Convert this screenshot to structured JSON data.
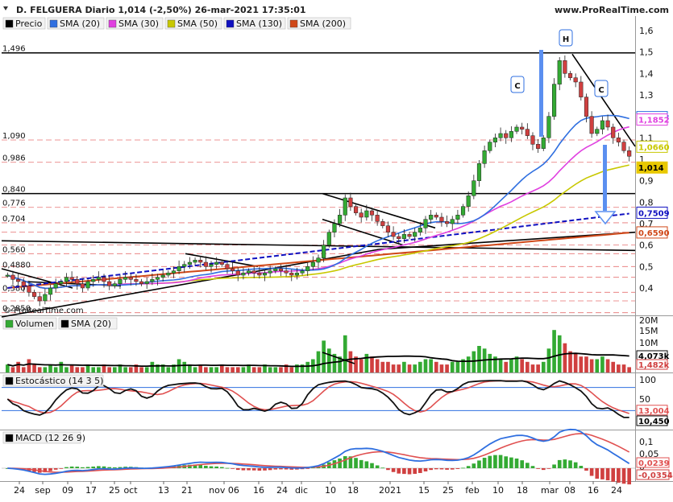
{
  "header": {
    "title": "D. FELGUERA Diario 1,014 (-2,50%) 26-mar-2021 17:35:01",
    "site": "www.ProRealTime.com",
    "watermark": "© ProRealTime.com"
  },
  "colors": {
    "price_up": "#33aa33",
    "price_down": "#d04040",
    "sma20": "#2f6fe0",
    "sma30": "#e040e0",
    "sma50": "#c8c800",
    "sma130": "#1010c0",
    "sma200": "#d04818",
    "volume_up": "#33aa33",
    "volume_down": "#d04040",
    "stoch_k": "#111111",
    "stoch_d": "#e05050",
    "macd": "#2f6fe0",
    "macd_signal": "#e05050",
    "arrow": "#5b8ff0"
  },
  "chart_data": [
    {
      "type": "candlestick",
      "name": "price-panel",
      "title": "Precio",
      "legend": [
        "Precio",
        "SMA (20)",
        "SMA (30)",
        "SMA (50)",
        "SMA (130)",
        "SMA (200)"
      ],
      "y_ticks": [
        "1,6",
        "1,5",
        "1,4",
        "1,3",
        "1,2",
        "1,1",
        "1",
        "0,9",
        "0,8",
        "0,7",
        "0,6",
        "0,5",
        "0,4"
      ],
      "ylim": [
        0.24,
        1.64
      ],
      "x_ticks": [
        "24",
        "sep",
        "09",
        "17",
        "25",
        "oct",
        "13",
        "21",
        "nov 06",
        "16",
        "24",
        "dic",
        "10",
        "18",
        "2021",
        "15",
        "25",
        "feb",
        "10",
        "18",
        "mar",
        "08",
        "16",
        "24"
      ],
      "levels": [
        {
          "label": "1,496",
          "value": 1.496
        },
        {
          "label": "1,090",
          "value": 1.09
        },
        {
          "label": "0,986",
          "value": 0.986
        },
        {
          "label": "0,840",
          "value": 0.84
        },
        {
          "label": "0,776",
          "value": 0.776
        },
        {
          "label": "0,704",
          "value": 0.704
        },
        {
          "label": "0,560",
          "value": 0.56
        },
        {
          "label": "0,4880",
          "value": 0.488
        },
        {
          "label": "0,380",
          "value": 0.38
        },
        {
          "label": "0,2850",
          "value": 0.285
        }
      ],
      "value_tags": [
        {
          "label": "1,1963",
          "value": 1.1963,
          "series": "SMA (20)"
        },
        {
          "label": "1,1852",
          "value": 1.1852,
          "series": "SMA (30)"
        },
        {
          "label": "1,0660",
          "value": 1.066,
          "series": "SMA (50)"
        },
        {
          "label": "1,014",
          "value": 1.014,
          "series": "Precio"
        },
        {
          "label": "0,7509",
          "value": 0.7509,
          "series": "SMA (130)"
        },
        {
          "label": "0,6590",
          "value": 0.659,
          "series": "SMA (200)"
        }
      ],
      "annotations": [
        "C",
        "H",
        "C"
      ],
      "close": [
        0.46,
        0.44,
        0.43,
        0.41,
        0.38,
        0.36,
        0.34,
        0.37,
        0.4,
        0.42,
        0.43,
        0.45,
        0.44,
        0.42,
        0.4,
        0.43,
        0.44,
        0.45,
        0.43,
        0.41,
        0.42,
        0.44,
        0.45,
        0.44,
        0.43,
        0.42,
        0.43,
        0.44,
        0.45,
        0.46,
        0.47,
        0.48,
        0.5,
        0.51,
        0.52,
        0.53,
        0.52,
        0.5,
        0.51,
        0.52,
        0.51,
        0.49,
        0.48,
        0.46,
        0.47,
        0.48,
        0.47,
        0.46,
        0.47,
        0.48,
        0.49,
        0.48,
        0.47,
        0.46,
        0.47,
        0.48,
        0.5,
        0.52,
        0.54,
        0.6,
        0.66,
        0.7,
        0.74,
        0.82,
        0.78,
        0.75,
        0.73,
        0.76,
        0.74,
        0.71,
        0.69,
        0.66,
        0.64,
        0.63,
        0.65,
        0.64,
        0.66,
        0.68,
        0.72,
        0.74,
        0.73,
        0.71,
        0.7,
        0.72,
        0.74,
        0.78,
        0.83,
        0.9,
        0.98,
        1.04,
        1.08,
        1.1,
        1.12,
        1.1,
        1.13,
        1.15,
        1.14,
        1.11,
        1.07,
        1.05,
        1.1,
        1.2,
        1.35,
        1.46,
        1.4,
        1.38,
        1.36,
        1.29,
        1.2,
        1.12,
        1.14,
        1.18,
        1.15,
        1.1,
        1.08,
        1.04,
        1.014
      ],
      "volume": [
        3,
        2,
        4,
        2,
        5,
        3,
        2,
        2,
        3,
        2,
        4,
        2,
        3,
        2,
        2,
        3,
        2,
        2,
        3,
        2,
        2,
        3,
        2,
        2,
        3,
        2,
        2,
        4,
        3,
        3,
        2,
        3,
        5,
        4,
        3,
        2,
        3,
        2,
        2,
        2,
        3,
        2,
        2,
        2,
        2,
        3,
        2,
        2,
        3,
        2,
        2,
        2,
        3,
        2,
        3,
        3,
        4,
        5,
        8,
        12,
        9,
        7,
        6,
        14,
        8,
        6,
        5,
        7,
        6,
        5,
        4,
        4,
        3,
        3,
        4,
        3,
        3,
        4,
        5,
        5,
        4,
        3,
        3,
        4,
        4,
        5,
        6,
        8,
        10,
        9,
        7,
        6,
        5,
        4,
        5,
        6,
        5,
        4,
        3,
        3,
        4,
        9,
        16,
        14,
        11,
        8,
        7,
        6,
        6,
        5,
        5,
        6,
        5,
        4,
        3,
        3,
        2
      ]
    },
    {
      "type": "bar",
      "name": "volume-panel",
      "title": "Volumen",
      "legend": [
        "Volumen",
        "SMA (20)"
      ],
      "y_ticks": [
        "20M",
        "15M",
        "10M",
        "5M"
      ],
      "value_tags": [
        {
          "label": "4,073k",
          "series": "SMA (20)"
        },
        {
          "label": "1,482k",
          "series": "Volumen"
        }
      ]
    },
    {
      "type": "line",
      "name": "stochastic-panel",
      "title": "Estocástico (14 3 5)",
      "legend": [
        "Estocástico (14 3 5)"
      ],
      "y_ticks": [
        "100",
        "50"
      ],
      "ylim": [
        0,
        110
      ],
      "value_tags": [
        {
          "label": "13,004",
          "value": 13.004
        },
        {
          "label": "10,450",
          "value": 10.45
        }
      ]
    },
    {
      "type": "line",
      "name": "macd-panel",
      "title": "MACD (12 26 9)",
      "legend": [
        "MACD (12 26 9)"
      ],
      "y_ticks": [
        "0,1",
        "0,05",
        "0"
      ],
      "value_tags": [
        {
          "label": "0,0239",
          "value": 0.0239
        },
        {
          "label": "-0,0354",
          "value": -0.0354
        }
      ]
    }
  ]
}
